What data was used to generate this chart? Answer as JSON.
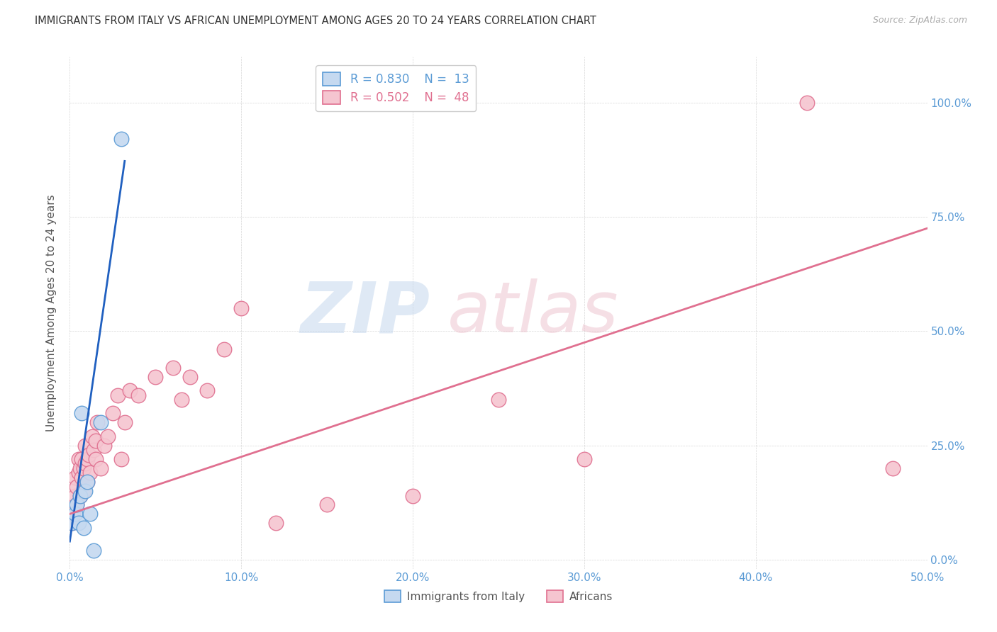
{
  "title": "IMMIGRANTS FROM ITALY VS AFRICAN UNEMPLOYMENT AMONG AGES 20 TO 24 YEARS CORRELATION CHART",
  "source": "Source: ZipAtlas.com",
  "ylabel": "Unemployment Among Ages 20 to 24 years",
  "xlim": [
    0.0,
    0.5
  ],
  "ylim": [
    -0.02,
    1.1
  ],
  "xticks": [
    0.0,
    0.1,
    0.2,
    0.3,
    0.4,
    0.5
  ],
  "yticks": [
    0.0,
    0.25,
    0.5,
    0.75,
    1.0
  ],
  "xticklabels": [
    "0.0%",
    "10.0%",
    "20.0%",
    "30.0%",
    "40.0%",
    "50.0%"
  ],
  "yticklabels": [
    "0.0%",
    "25.0%",
    "50.0%",
    "75.0%",
    "100.0%"
  ],
  "blue_fill": "#c5d9f0",
  "blue_edge": "#5b9bd5",
  "pink_fill": "#f5c5d0",
  "pink_edge": "#e07090",
  "blue_line": "#2060c0",
  "pink_line": "#e07090",
  "italy_x": [
    0.001,
    0.003,
    0.004,
    0.005,
    0.006,
    0.007,
    0.008,
    0.009,
    0.01,
    0.012,
    0.014,
    0.018,
    0.03
  ],
  "italy_y": [
    0.08,
    0.1,
    0.12,
    0.08,
    0.14,
    0.32,
    0.07,
    0.15,
    0.17,
    0.1,
    0.02,
    0.3,
    0.92
  ],
  "africa_x": [
    0.001,
    0.002,
    0.003,
    0.003,
    0.004,
    0.004,
    0.005,
    0.005,
    0.006,
    0.006,
    0.007,
    0.007,
    0.008,
    0.008,
    0.009,
    0.009,
    0.01,
    0.01,
    0.011,
    0.012,
    0.013,
    0.014,
    0.015,
    0.015,
    0.016,
    0.018,
    0.02,
    0.022,
    0.025,
    0.028,
    0.03,
    0.032,
    0.035,
    0.04,
    0.05,
    0.06,
    0.065,
    0.07,
    0.08,
    0.09,
    0.1,
    0.12,
    0.15,
    0.2,
    0.25,
    0.3,
    0.43,
    0.48
  ],
  "africa_y": [
    0.08,
    0.1,
    0.14,
    0.18,
    0.12,
    0.16,
    0.19,
    0.22,
    0.14,
    0.2,
    0.18,
    0.22,
    0.15,
    0.2,
    0.21,
    0.25,
    0.17,
    0.22,
    0.23,
    0.19,
    0.27,
    0.24,
    0.22,
    0.26,
    0.3,
    0.2,
    0.25,
    0.27,
    0.32,
    0.36,
    0.22,
    0.3,
    0.37,
    0.36,
    0.4,
    0.42,
    0.35,
    0.4,
    0.37,
    0.46,
    0.55,
    0.08,
    0.12,
    0.14,
    0.35,
    0.22,
    1.0,
    0.2
  ],
  "italy_line_x": [
    0.0,
    0.032
  ],
  "africa_line_x": [
    0.0,
    0.5
  ],
  "italy_line_y_start": 0.04,
  "italy_line_slope": 26.0,
  "africa_line_y_start": 0.1,
  "africa_line_slope": 1.25
}
